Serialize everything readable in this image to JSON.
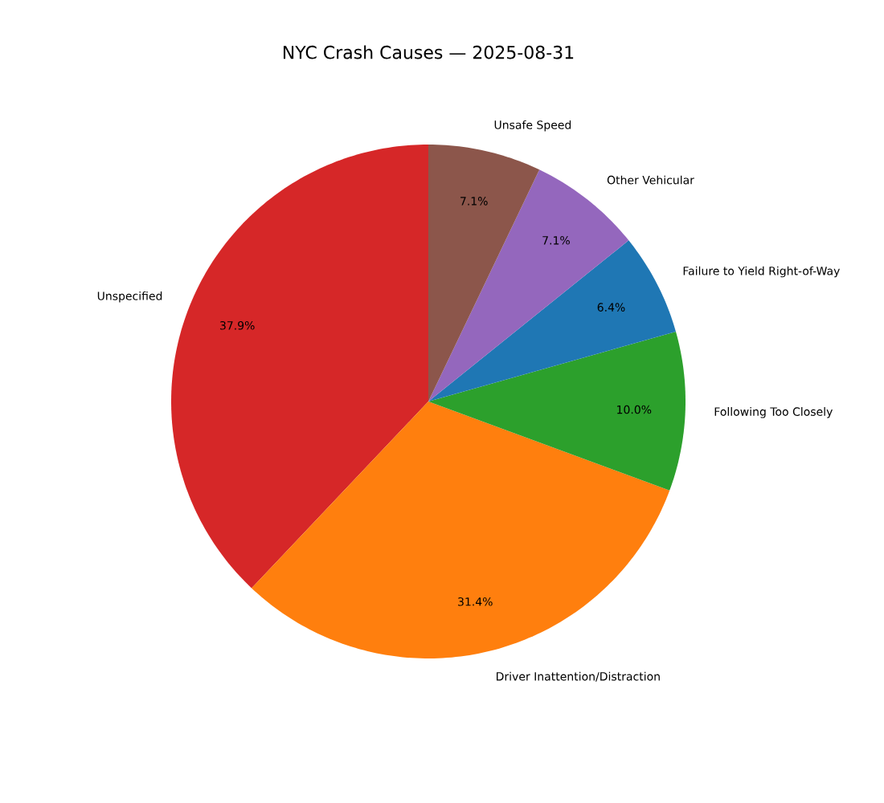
{
  "chart_data": {
    "type": "pie",
    "title": "NYC Crash Causes — 2025-08-31",
    "categories": [
      "Unspecified",
      "Driver Inattention/Distraction",
      "Following Too Closely",
      "Failure to Yield Right-of-Way",
      "Other Vehicular",
      "Unsafe Speed"
    ],
    "values": [
      37.9,
      31.4,
      10.0,
      6.4,
      7.1,
      7.1
    ],
    "value_labels": [
      "37.9%",
      "31.4%",
      "10.0%",
      "6.4%",
      "7.1%",
      "7.1%"
    ],
    "colors": [
      "#d62728",
      "#ff7f0e",
      "#2ca02c",
      "#1f77b4",
      "#9467bd",
      "#8c564b"
    ]
  }
}
